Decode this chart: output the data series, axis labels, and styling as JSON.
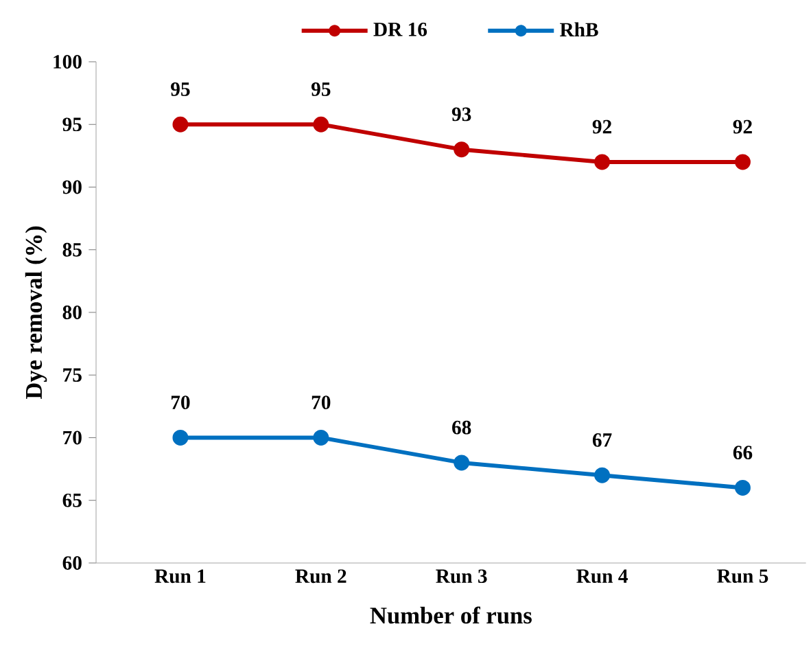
{
  "chart_data": {
    "type": "line",
    "xlabel": "Number of runs",
    "ylabel": "Dye removal (%)",
    "categories": [
      "Run 1",
      "Run 2",
      "Run 3",
      "Run 4",
      "Run 5"
    ],
    "series": [
      {
        "name": "DR 16",
        "color": "#c00000",
        "values": [
          95,
          95,
          93,
          92,
          92
        ]
      },
      {
        "name": "RhB",
        "color": "#0070c0",
        "values": [
          70,
          70,
          68,
          67,
          66
        ]
      }
    ],
    "ylim": [
      60,
      100
    ],
    "yticks": [
      60,
      65,
      70,
      75,
      80,
      85,
      90,
      95,
      100
    ],
    "data_labels": true,
    "legend": "top",
    "marker": "circle",
    "line_style": "solid",
    "grid": false
  }
}
